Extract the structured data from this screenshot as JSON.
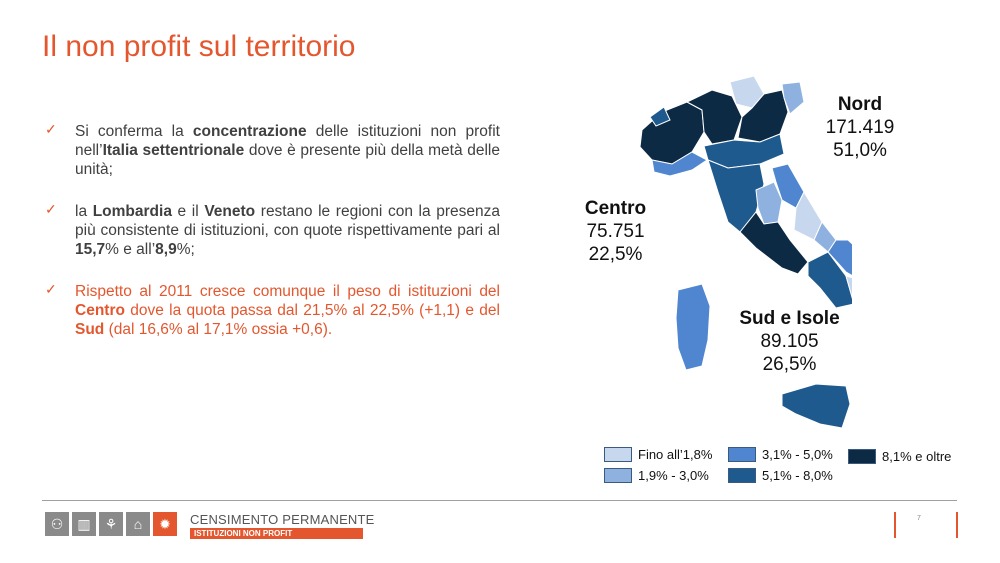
{
  "title": "Il non profit sul territorio",
  "bullets": [
    {
      "parts": [
        {
          "t": "Si conferma la ",
          "b": false
        },
        {
          "t": "concentrazione",
          "b": true
        },
        {
          "t": " delle istituzioni non profit nell’",
          "b": false
        },
        {
          "t": "Italia settentrionale",
          "b": true
        },
        {
          "t": " dove è presente più della metà delle unità;",
          "b": false
        }
      ]
    },
    {
      "parts": [
        {
          "t": "la ",
          "b": false
        },
        {
          "t": "Lombardia",
          "b": true
        },
        {
          "t": " e il ",
          "b": false
        },
        {
          "t": "Veneto",
          "b": true
        },
        {
          "t": " restano le regioni con la presenza più consistente di istituzioni, con quote rispettivamente pari al ",
          "b": false
        },
        {
          "t": "15,7",
          "b": true
        },
        {
          "t": "% e all’",
          "b": false
        },
        {
          "t": "8,9",
          "b": true
        },
        {
          "t": "%;",
          "b": false
        }
      ]
    },
    {
      "parts": [
        {
          "t": "Rispetto al 2011 cresce comunque il peso di istituzioni del ",
          "b": false
        },
        {
          "t": "Centro",
          "b": true
        },
        {
          "t": " dove la quota passa dal 21,5% al 22,5% (+1,1) e del ",
          "b": false
        },
        {
          "t": "Sud",
          "b": true
        },
        {
          "t": " (dal 16,6% al 17,1% ossia +0,6).",
          "b": false
        }
      ]
    }
  ],
  "regions": {
    "nord": {
      "name": "Nord",
      "count": "171.419",
      "share": "51,0%"
    },
    "centro": {
      "name": "Centro",
      "count": "75.751",
      "share": "22,5%"
    },
    "sud": {
      "name": "Sud e Isole",
      "count": "89.105",
      "share": "26,5%"
    }
  },
  "legend": [
    {
      "label": "Fino all’1,8%",
      "color": "#c7d7ee"
    },
    {
      "label": "1,9% - 3,0%",
      "color": "#8fb1df"
    },
    {
      "label": "3,1% - 5,0%",
      "color": "#4f86cf"
    },
    {
      "label": "5,1% - 8,0%",
      "color": "#1f5a8f"
    },
    {
      "label": "8,1% e oltre",
      "color": "#0d2a45"
    }
  ],
  "footer": {
    "brand_line1": "CENSIMENTO PERMANENTE",
    "brand_line2": "ISTITUZIONI NON PROFIT",
    "page_number": "7"
  }
}
